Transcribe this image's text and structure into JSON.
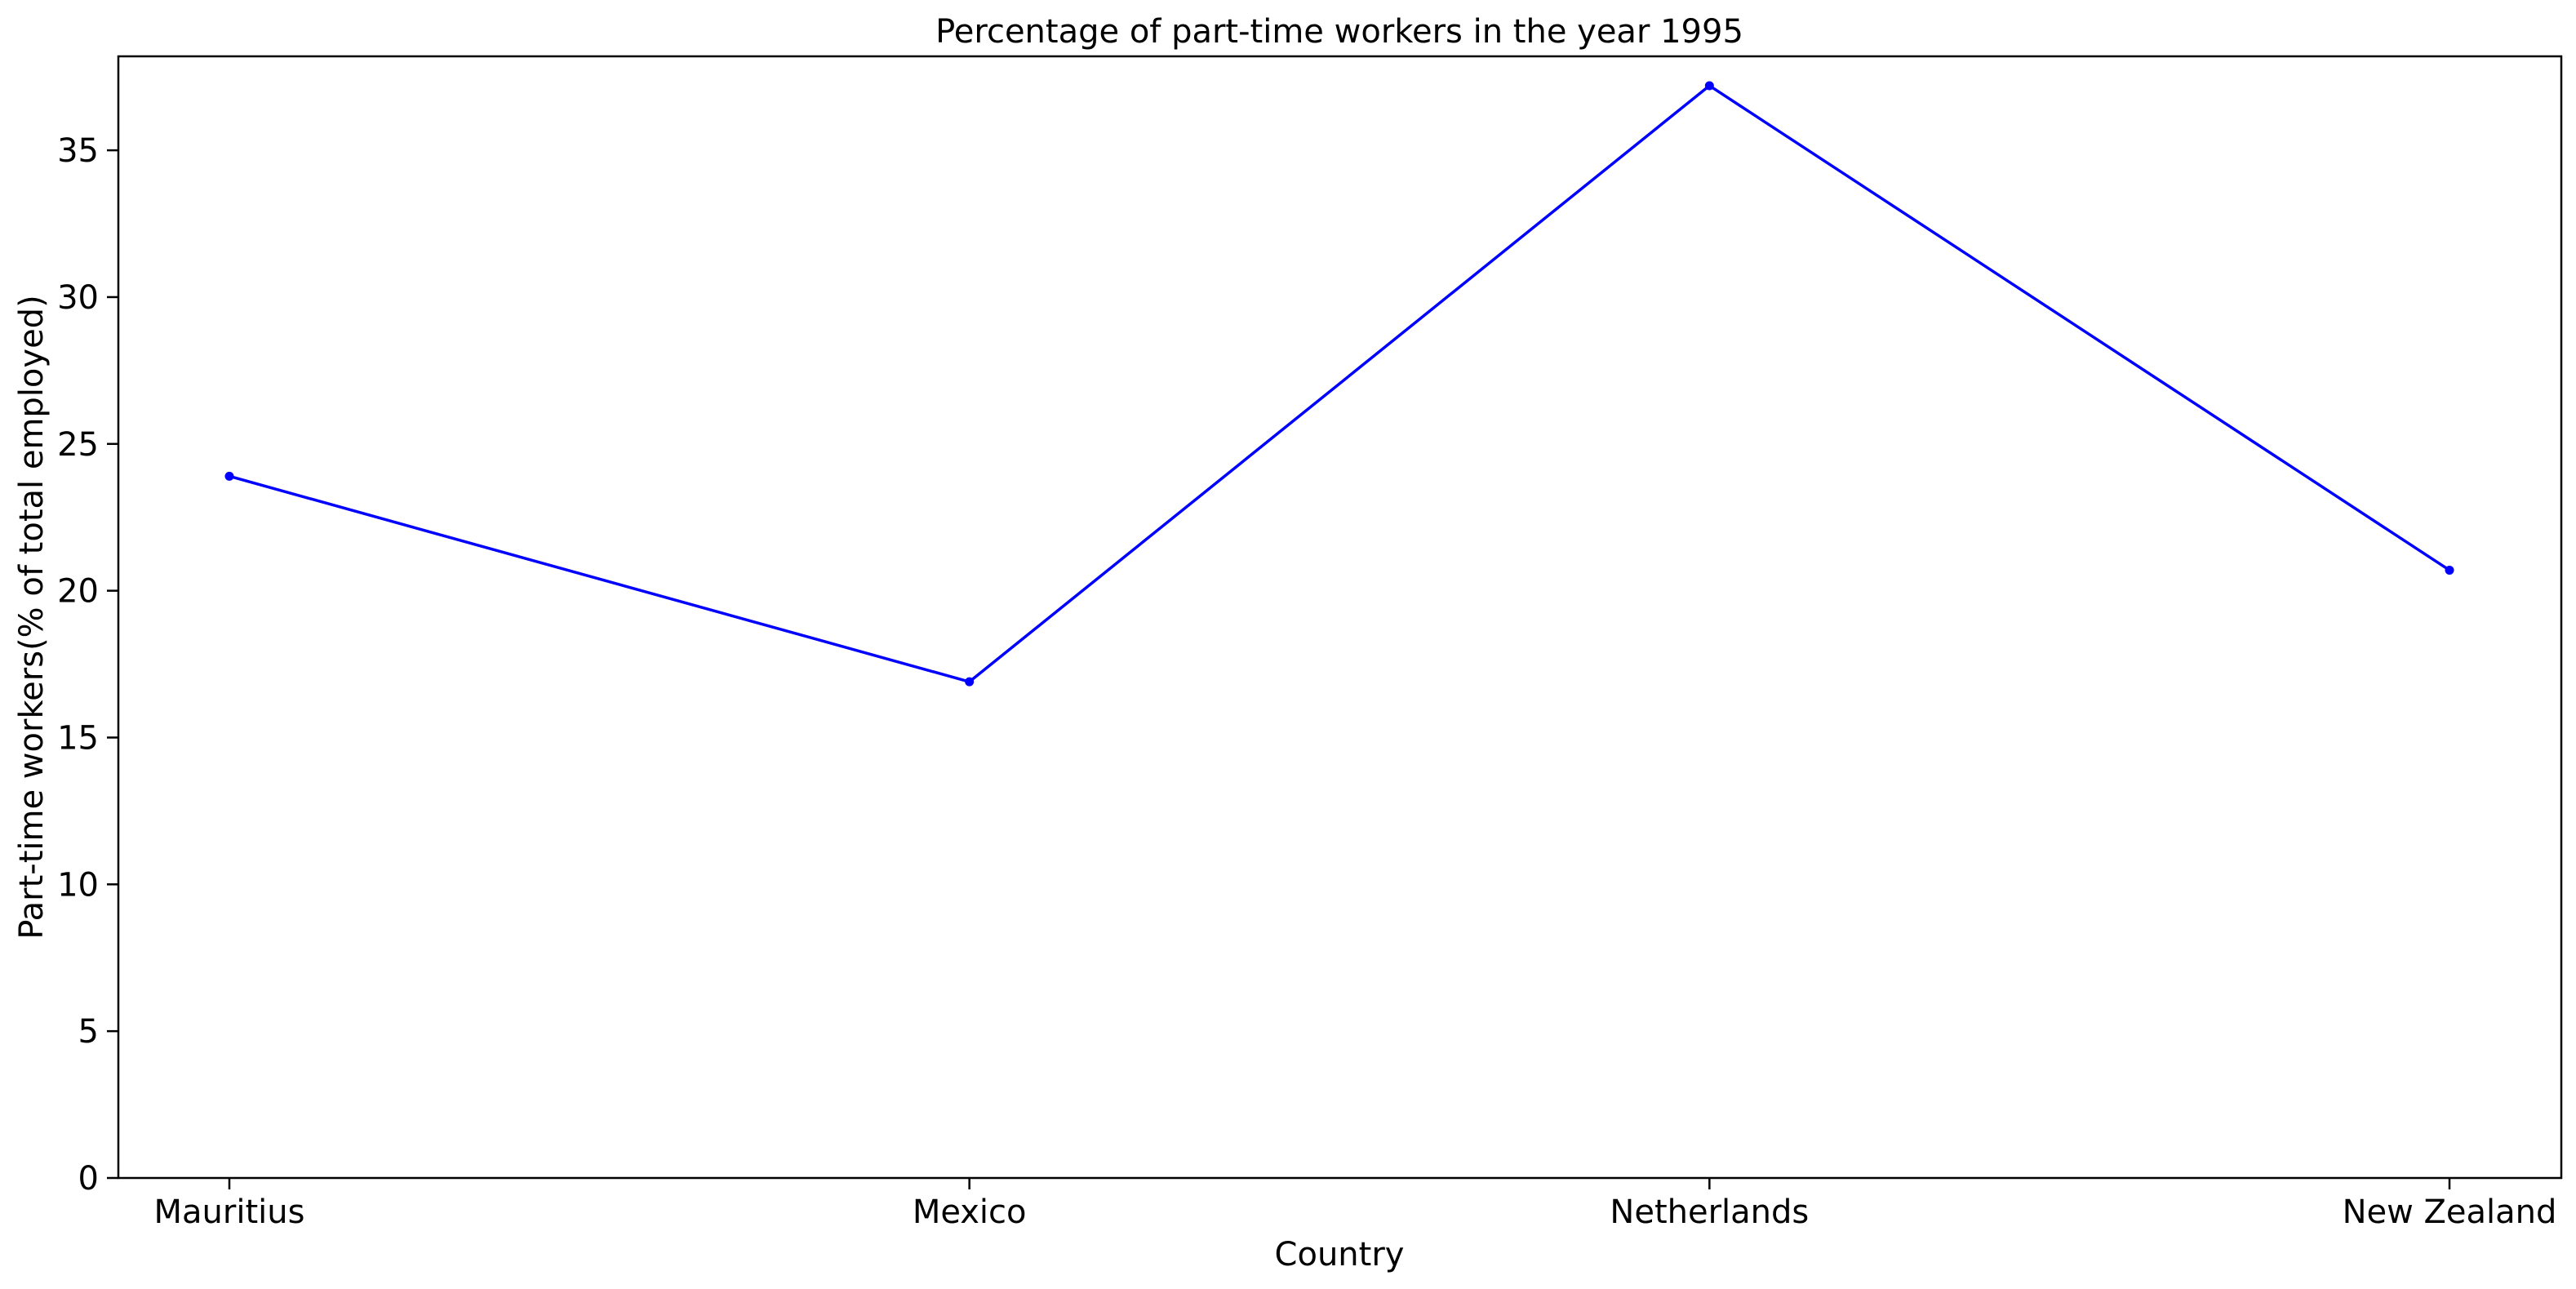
{
  "chart_data": {
    "type": "line",
    "title": "Percentage of part-time workers in the year 1995",
    "xlabel": "Country",
    "ylabel": "Part-time workers(% of total employed)",
    "categories": [
      "Mauritius",
      "Mexico",
      "Netherlands",
      "New Zealand"
    ],
    "series": [
      {
        "values": [
          23.9,
          16.9,
          37.2,
          20.7
        ],
        "color": "#0000ff",
        "marker": "dot"
      }
    ],
    "ylim": [
      0,
      38.2
    ],
    "yticks": [
      0,
      5,
      10,
      15,
      20,
      25,
      30,
      35
    ],
    "grid": false,
    "legend": "none"
  }
}
